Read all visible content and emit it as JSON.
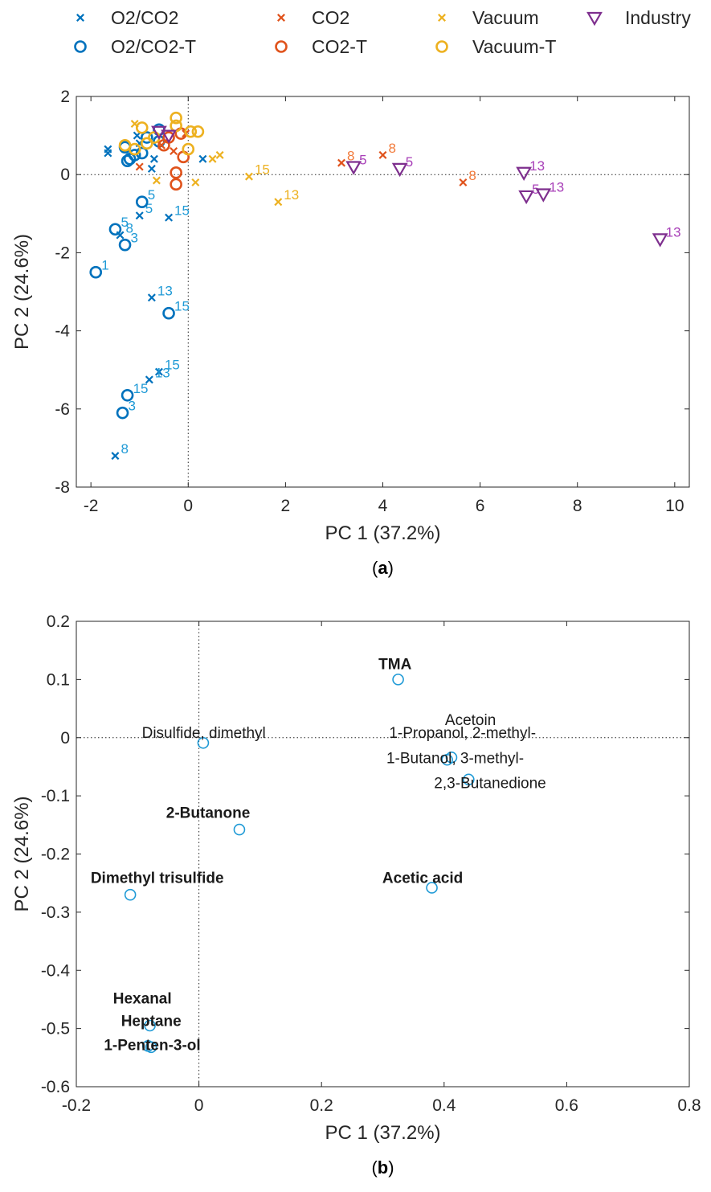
{
  "chart_data": [
    {
      "type": "scatter",
      "panel_label": "a",
      "xlabel": "PC 1 (37.2%)",
      "ylabel": "PC 2 (24.6%)",
      "xlim": [
        -2.3,
        10.3
      ],
      "ylim": [
        -8,
        2
      ],
      "xticks": [
        -2,
        0,
        2,
        4,
        6,
        8,
        10
      ],
      "yticks": [
        -8,
        -6,
        -4,
        -2,
        0,
        2
      ],
      "reference_lines": "dotted lines at x = 0 and y = 0",
      "legend": {
        "placement": "top, above plot",
        "entries": [
          {
            "name": "O2/CO2",
            "marker": "x",
            "color": "#0072BD"
          },
          {
            "name": "CO2",
            "marker": "x",
            "color": "#E0531C"
          },
          {
            "name": "Vacuum",
            "marker": "x",
            "color": "#EDB120"
          },
          {
            "name": "Industry",
            "marker": "triangle-down",
            "color": "#7E2F8E"
          },
          {
            "name": "O2/CO2-T",
            "marker": "circle",
            "color": "#0072BD"
          },
          {
            "name": "CO2-T",
            "marker": "circle",
            "color": "#E0531C"
          },
          {
            "name": "Vacuum-T",
            "marker": "circle",
            "color": "#EDB120"
          }
        ]
      },
      "series": [
        {
          "name": "O2/CO2",
          "marker": "x",
          "color": "#0072BD",
          "label_color": "#1F9AD6",
          "points": [
            {
              "x": -1.65,
              "y": 0.65,
              "label": ""
            },
            {
              "x": -1.65,
              "y": 0.55,
              "label": ""
            },
            {
              "x": -0.75,
              "y": 0.15,
              "label": ""
            },
            {
              "x": -0.7,
              "y": 0.4,
              "label": ""
            },
            {
              "x": 0.3,
              "y": 0.4,
              "label": ""
            },
            {
              "x": -1.0,
              "y": 0.8,
              "label": ""
            },
            {
              "x": -1.05,
              "y": 1.0,
              "label": ""
            },
            {
              "x": -1.0,
              "y": -1.05,
              "label": "5"
            },
            {
              "x": -0.4,
              "y": -1.1,
              "label": "15"
            },
            {
              "x": -1.4,
              "y": -1.55,
              "label": "8"
            },
            {
              "x": -0.75,
              "y": -3.15,
              "label": "13"
            },
            {
              "x": -0.6,
              "y": -5.05,
              "label": "15"
            },
            {
              "x": -0.8,
              "y": -5.25,
              "label": "13"
            },
            {
              "x": -1.5,
              "y": -7.2,
              "label": "8"
            }
          ]
        },
        {
          "name": "O2/CO2-T",
          "marker": "circle",
          "color": "#0072BD",
          "label_color": "#1F9AD6",
          "points": [
            {
              "x": -1.3,
              "y": 0.7,
              "label": ""
            },
            {
              "x": -1.2,
              "y": 0.4,
              "label": ""
            },
            {
              "x": -1.1,
              "y": 0.5,
              "label": ""
            },
            {
              "x": -1.25,
              "y": 0.35,
              "label": ""
            },
            {
              "x": -0.95,
              "y": 0.55,
              "label": ""
            },
            {
              "x": -0.85,
              "y": 0.95,
              "label": ""
            },
            {
              "x": -0.6,
              "y": 1.15,
              "label": ""
            },
            {
              "x": -0.6,
              "y": 0.85,
              "label": ""
            },
            {
              "x": -0.95,
              "y": -0.7,
              "label": "5"
            },
            {
              "x": -1.5,
              "y": -1.4,
              "label": "5"
            },
            {
              "x": -1.3,
              "y": -1.8,
              "label": "3"
            },
            {
              "x": -1.9,
              "y": -2.5,
              "label": "1"
            },
            {
              "x": -0.4,
              "y": -3.55,
              "label": "15"
            },
            {
              "x": -1.25,
              "y": -5.65,
              "label": "15"
            },
            {
              "x": -1.35,
              "y": -6.1,
              "label": "3"
            }
          ]
        },
        {
          "name": "CO2",
          "marker": "x",
          "color": "#E0531C",
          "label_color": "#F27A3A",
          "points": [
            {
              "x": -0.05,
              "y": 1.05,
              "label": ""
            },
            {
              "x": -0.3,
              "y": 0.6,
              "label": ""
            },
            {
              "x": -1.0,
              "y": 0.2,
              "label": ""
            },
            {
              "x": -0.55,
              "y": 0.75,
              "label": ""
            },
            {
              "x": 3.15,
              "y": 0.3,
              "label": "8"
            },
            {
              "x": 4.0,
              "y": 0.5,
              "label": "8"
            },
            {
              "x": 5.65,
              "y": -0.2,
              "label": "8"
            }
          ]
        },
        {
          "name": "CO2-T",
          "marker": "circle",
          "color": "#E0531C",
          "label_color": "#F27A3A",
          "points": [
            {
              "x": -0.4,
              "y": 0.95,
              "label": ""
            },
            {
              "x": -0.5,
              "y": 0.75,
              "label": ""
            },
            {
              "x": -0.1,
              "y": 0.45,
              "label": ""
            },
            {
              "x": -0.25,
              "y": 0.05,
              "label": ""
            },
            {
              "x": -0.25,
              "y": -0.25,
              "label": ""
            },
            {
              "x": -0.15,
              "y": 1.05,
              "label": ""
            }
          ]
        },
        {
          "name": "Vacuum",
          "marker": "x",
          "color": "#EDB120",
          "label_color": "#EDB120",
          "points": [
            {
              "x": -1.1,
              "y": 1.3,
              "label": ""
            },
            {
              "x": -0.65,
              "y": -0.15,
              "label": ""
            },
            {
              "x": 0.15,
              "y": -0.2,
              "label": ""
            },
            {
              "x": 0.5,
              "y": 0.4,
              "label": ""
            },
            {
              "x": 0.65,
              "y": 0.5,
              "label": ""
            },
            {
              "x": 1.25,
              "y": -0.05,
              "label": "15"
            },
            {
              "x": 1.85,
              "y": -0.7,
              "label": "13"
            }
          ]
        },
        {
          "name": "Vacuum-T",
          "marker": "circle",
          "color": "#EDB120",
          "label_color": "#EDB120",
          "points": [
            {
              "x": -1.3,
              "y": 0.75,
              "label": ""
            },
            {
              "x": -1.1,
              "y": 0.65,
              "label": ""
            },
            {
              "x": -0.95,
              "y": 1.2,
              "label": ""
            },
            {
              "x": -0.85,
              "y": 0.8,
              "label": ""
            },
            {
              "x": -0.25,
              "y": 1.45,
              "label": ""
            },
            {
              "x": -0.25,
              "y": 1.25,
              "label": ""
            },
            {
              "x": 0.0,
              "y": 0.65,
              "label": ""
            },
            {
              "x": 0.05,
              "y": 1.1,
              "label": ""
            },
            {
              "x": 0.2,
              "y": 1.1,
              "label": ""
            },
            {
              "x": -0.7,
              "y": 0.95,
              "label": ""
            }
          ]
        },
        {
          "name": "Industry",
          "marker": "triangle-down",
          "color": "#7E2F8E",
          "label_color": "#A83FB8",
          "points": [
            {
              "x": -0.6,
              "y": 1.1,
              "label": ""
            },
            {
              "x": -0.4,
              "y": 1.0,
              "label": ""
            },
            {
              "x": 3.4,
              "y": 0.2,
              "label": "5"
            },
            {
              "x": 4.35,
              "y": 0.15,
              "label": "5"
            },
            {
              "x": 6.9,
              "y": 0.05,
              "label": "13"
            },
            {
              "x": 6.95,
              "y": -0.55,
              "label": "5"
            },
            {
              "x": 7.3,
              "y": -0.5,
              "label": "13"
            },
            {
              "x": 9.7,
              "y": -1.65,
              "label": "13"
            }
          ]
        }
      ]
    },
    {
      "type": "scatter",
      "panel_label": "b",
      "xlabel": "PC 1 (37.2%)",
      "ylabel": "PC 2 (24.6%)",
      "xlim": [
        -0.2,
        0.8
      ],
      "ylim": [
        -0.6,
        0.2
      ],
      "xticks": [
        -0.2,
        0,
        0.2,
        0.4,
        0.6,
        0.8
      ],
      "yticks": [
        -0.6,
        -0.5,
        -0.4,
        -0.3,
        -0.2,
        -0.1,
        0,
        0.1,
        0.2
      ],
      "reference_lines": "dotted lines at x = 0 and y = 0",
      "marker": "circle",
      "color": "#1F9AD6",
      "points": [
        {
          "x": 0.325,
          "y": 0.1
        },
        {
          "x": 0.007,
          "y": -0.009
        },
        {
          "x": 0.405,
          "y": -0.038
        },
        {
          "x": 0.412,
          "y": -0.034
        },
        {
          "x": 0.44,
          "y": -0.072
        },
        {
          "x": 0.066,
          "y": -0.158
        },
        {
          "x": -0.112,
          "y": -0.27
        },
        {
          "x": 0.38,
          "y": -0.258
        },
        {
          "x": -0.08,
          "y": -0.495
        },
        {
          "x": -0.083,
          "y": -0.53
        },
        {
          "x": -0.078,
          "y": -0.532
        }
      ],
      "annotations": [
        {
          "text": "TMA",
          "x": 0.32,
          "y": 0.118,
          "bold": true,
          "anchor": "middle"
        },
        {
          "text": "Acetoin",
          "x": 0.443,
          "y": 0.022,
          "bold": false,
          "anchor": "middle"
        },
        {
          "text": "Disulfide, dimethyl",
          "x": 0.008,
          "y": 0.0,
          "bold": false,
          "anchor": "middle"
        },
        {
          "text": "1-Propanol, 2-methyl-",
          "x": 0.43,
          "y": 0.0,
          "bold": false,
          "anchor": "middle"
        },
        {
          "text": "1-Butanol, 3-methyl-",
          "x": 0.418,
          "y": -0.044,
          "bold": false,
          "anchor": "middle"
        },
        {
          "text": "2,3-Butanedione",
          "x": 0.475,
          "y": -0.087,
          "bold": false,
          "anchor": "middle"
        },
        {
          "text": "2-Butanone",
          "x": 0.015,
          "y": -0.138,
          "bold": true,
          "anchor": "middle"
        },
        {
          "text": "Dimethyl trisulfide",
          "x": -0.068,
          "y": -0.25,
          "bold": true,
          "anchor": "middle"
        },
        {
          "text": "Acetic acid",
          "x": 0.365,
          "y": -0.25,
          "bold": true,
          "anchor": "middle"
        },
        {
          "text": "Hexanal",
          "x": -0.14,
          "y": -0.457,
          "bold": true,
          "anchor": "start"
        },
        {
          "text": "Heptane",
          "x": -0.127,
          "y": -0.496,
          "bold": true,
          "anchor": "start"
        },
        {
          "text": "1-Penten-3-ol",
          "x": -0.155,
          "y": -0.537,
          "bold": true,
          "anchor": "start"
        }
      ]
    }
  ]
}
